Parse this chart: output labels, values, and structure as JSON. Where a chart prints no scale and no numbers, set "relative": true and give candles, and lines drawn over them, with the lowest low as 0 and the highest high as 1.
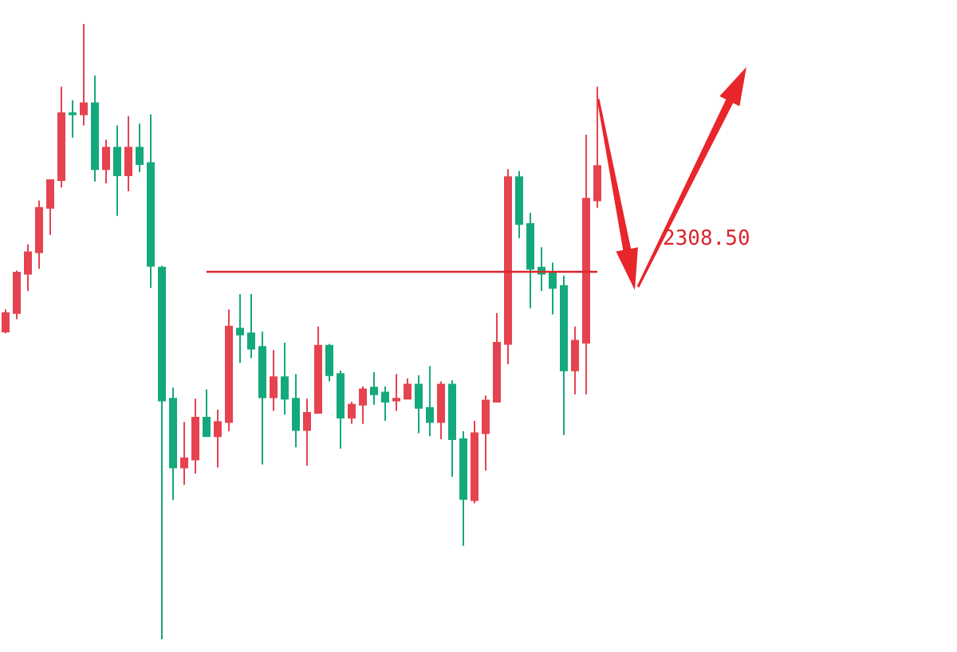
{
  "chart_data": {
    "type": "candlestick",
    "relative": true,
    "categories": [
      null,
      null,
      null,
      null,
      null,
      null,
      null,
      null,
      null,
      null,
      null,
      null,
      null,
      null,
      null,
      null,
      null,
      null,
      null,
      null,
      null,
      null,
      null,
      null,
      null,
      null,
      null,
      null,
      null,
      null,
      null,
      null,
      null,
      null,
      null,
      null,
      null,
      null,
      null,
      null,
      null,
      null,
      null,
      null,
      null,
      null,
      null,
      null,
      null,
      null,
      null,
      null,
      null,
      null
    ],
    "ohlc": [
      [
        0.5,
        0.536,
        0.497,
        0.53
      ],
      [
        0.53,
        0.599,
        0.52,
        0.596
      ],
      [
        0.594,
        0.642,
        0.566,
        0.629
      ],
      [
        0.629,
        0.713,
        0.602,
        0.701
      ],
      [
        0.701,
        0.746,
        0.657,
        0.746
      ],
      [
        0.746,
        0.898,
        0.734,
        0.855
      ],
      [
        0.855,
        0.876,
        0.815,
        0.853
      ],
      [
        0.853,
        1,
        0.835,
        0.871
      ],
      [
        0.871,
        0.916,
        0.744,
        0.764
      ],
      [
        0.764,
        0.812,
        0.741,
        0.799
      ],
      [
        0.799,
        0.835,
        0.688,
        0.754
      ],
      [
        0.754,
        0.85,
        0.728,
        0.799
      ],
      [
        0.799,
        0.838,
        0.759,
        0.772
      ],
      [
        0.774,
        0.853,
        0.571,
        0.607
      ],
      [
        0.604,
        0.607,
        0,
        0.388
      ],
      [
        0.391,
        0.409,
        0.226,
        0.279
      ],
      [
        0.279,
        0.353,
        0.251,
        0.294
      ],
      [
        0.292,
        0.391,
        0.269,
        0.36
      ],
      [
        0.36,
        0.406,
        0.33,
        0.33
      ],
      [
        0.33,
        0.373,
        0.279,
        0.353
      ],
      [
        0.353,
        0.536,
        0.338,
        0.508
      ],
      [
        0.505,
        0.561,
        0.449,
        0.495
      ],
      [
        0.497,
        0.561,
        0.457,
        0.472
      ],
      [
        0.475,
        0.5,
        0.284,
        0.393
      ],
      [
        0.393,
        0.47,
        0.371,
        0.426
      ],
      [
        0.426,
        0.482,
        0.365,
        0.391
      ],
      [
        0.391,
        0.431,
        0.312,
        0.34
      ],
      [
        0.34,
        0.391,
        0.282,
        0.368
      ],
      [
        0.368,
        0.508,
        0.368,
        0.477
      ],
      [
        0.477,
        0.48,
        0.419,
        0.429
      ],
      [
        0.431,
        0.437,
        0.31,
        0.36
      ],
      [
        0.36,
        0.386,
        0.35,
        0.381
      ],
      [
        0.381,
        0.411,
        0.35,
        0.406
      ],
      [
        0.409,
        0.434,
        0.381,
        0.398
      ],
      [
        0.401,
        0.411,
        0.355,
        0.386
      ],
      [
        0.388,
        0.431,
        0.371,
        0.391
      ],
      [
        0.391,
        0.424,
        0.391,
        0.414
      ],
      [
        0.414,
        0.429,
        0.335,
        0.376
      ],
      [
        0.376,
        0.444,
        0.33,
        0.353
      ],
      [
        0.353,
        0.419,
        0.325,
        0.414
      ],
      [
        0.414,
        0.421,
        0.264,
        0.325
      ],
      [
        0.325,
        0.338,
        0.152,
        0.228
      ],
      [
        0.226,
        0.355,
        0.221,
        0.335
      ],
      [
        0.335,
        0.396,
        0.274,
        0.388
      ],
      [
        0.386,
        0.53,
        0.386,
        0.482
      ],
      [
        0.48,
        0.764,
        0.447,
        0.751
      ],
      [
        0.751,
        0.761,
        0.652,
        0.675
      ],
      [
        0.675,
        0.693,
        0.538,
        0.602
      ],
      [
        0.604,
        0.637,
        0.566,
        0.594
      ],
      [
        0.596,
        0.612,
        0.528,
        0.571
      ],
      [
        0.574,
        0.591,
        0.332,
        0.437
      ],
      [
        0.437,
        0.508,
        0.398,
        0.485
      ],
      [
        0.482,
        0.82,
        0.398,
        0.716
      ],
      [
        0.713,
        0.898,
        0.701,
        0.769
      ]
    ],
    "colors": [
      "#e5434f",
      "#e5434f",
      "#e5434f",
      "#e5434f",
      "#e5434f",
      "#e5434f",
      "#14a97c",
      "#e5434f",
      "#14a97c",
      "#e5434f",
      "#14a97c",
      "#e5434f",
      "#14a97c",
      "#14a97c",
      "#14a97c",
      "#14a97c",
      "#e5434f",
      "#e5434f",
      "#14a97c",
      "#e5434f",
      "#e5434f",
      "#14a97c",
      "#14a97c",
      "#14a97c",
      "#e5434f",
      "#14a97c",
      "#14a97c",
      "#e5434f",
      "#e5434f",
      "#14a97c",
      "#14a97c",
      "#e5434f",
      "#e5434f",
      "#14a97c",
      "#14a97c",
      "#e5434f",
      "#e5434f",
      "#14a97c",
      "#14a97c",
      "#e5434f",
      "#14a97c",
      "#14a97c",
      "#e5434f",
      "#e5434f",
      "#e5434f",
      "#e5434f",
      "#14a97c",
      "#14a97c",
      "#14a97c",
      "#14a97c",
      "#14a97c",
      "#e5434f",
      "#e5434f",
      "#e5434f"
    ],
    "ref_lines": [
      {
        "axis": "y",
        "value": 0.599,
        "color": "#d9262e"
      }
    ],
    "annotations": [
      "2308.50"
    ]
  }
}
